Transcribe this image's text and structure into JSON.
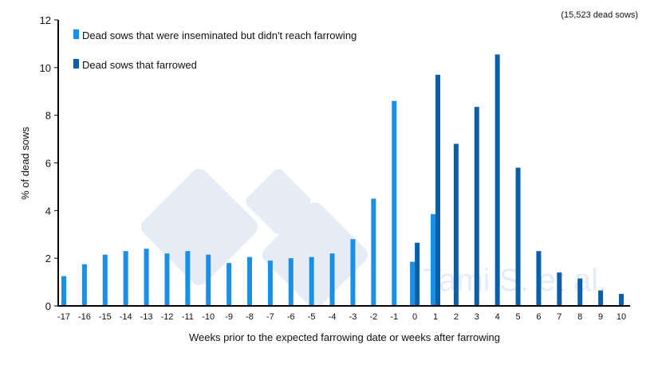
{
  "chart_data": {
    "type": "bar",
    "note": "(15,523 dead sows)",
    "xlabel": "Weeks prior to the expected farrowing date or weeks after farrowing",
    "ylabel": "% of dead sows",
    "ylim": [
      0,
      12
    ],
    "yticks": [
      0,
      2,
      4,
      6,
      8,
      10,
      12
    ],
    "grid": false,
    "legend_position": "top-left",
    "categories": [
      "-17",
      "-16",
      "-15",
      "-14",
      "-13",
      "-12",
      "-11",
      "-10",
      "-9",
      "-8",
      "-7",
      "-6",
      "-5",
      "-4",
      "-3",
      "-2",
      "-1",
      "0",
      "1",
      "2",
      "3",
      "4",
      "5",
      "6",
      "7",
      "8",
      "9",
      "10"
    ],
    "series": [
      {
        "name": "Dead sows that were inseminated but didn't reach farrowing",
        "color": "#1a8fe6",
        "values": [
          1.25,
          1.75,
          2.15,
          2.3,
          2.4,
          2.2,
          2.3,
          2.15,
          1.8,
          2.05,
          1.9,
          2.0,
          2.05,
          2.2,
          2.8,
          4.5,
          8.6,
          1.85,
          3.85,
          null,
          null,
          null,
          null,
          null,
          null,
          null,
          null,
          null
        ]
      },
      {
        "name": "Dead sows that farrowed",
        "color": "#0b5fa8",
        "values": [
          null,
          null,
          null,
          null,
          null,
          null,
          null,
          null,
          null,
          null,
          null,
          null,
          null,
          null,
          null,
          null,
          null,
          2.65,
          9.7,
          6.8,
          8.35,
          10.55,
          5.8,
          2.3,
          1.4,
          1.15,
          0.65,
          0.5
        ]
      }
    ],
    "watermark": "Tami S. et al."
  }
}
